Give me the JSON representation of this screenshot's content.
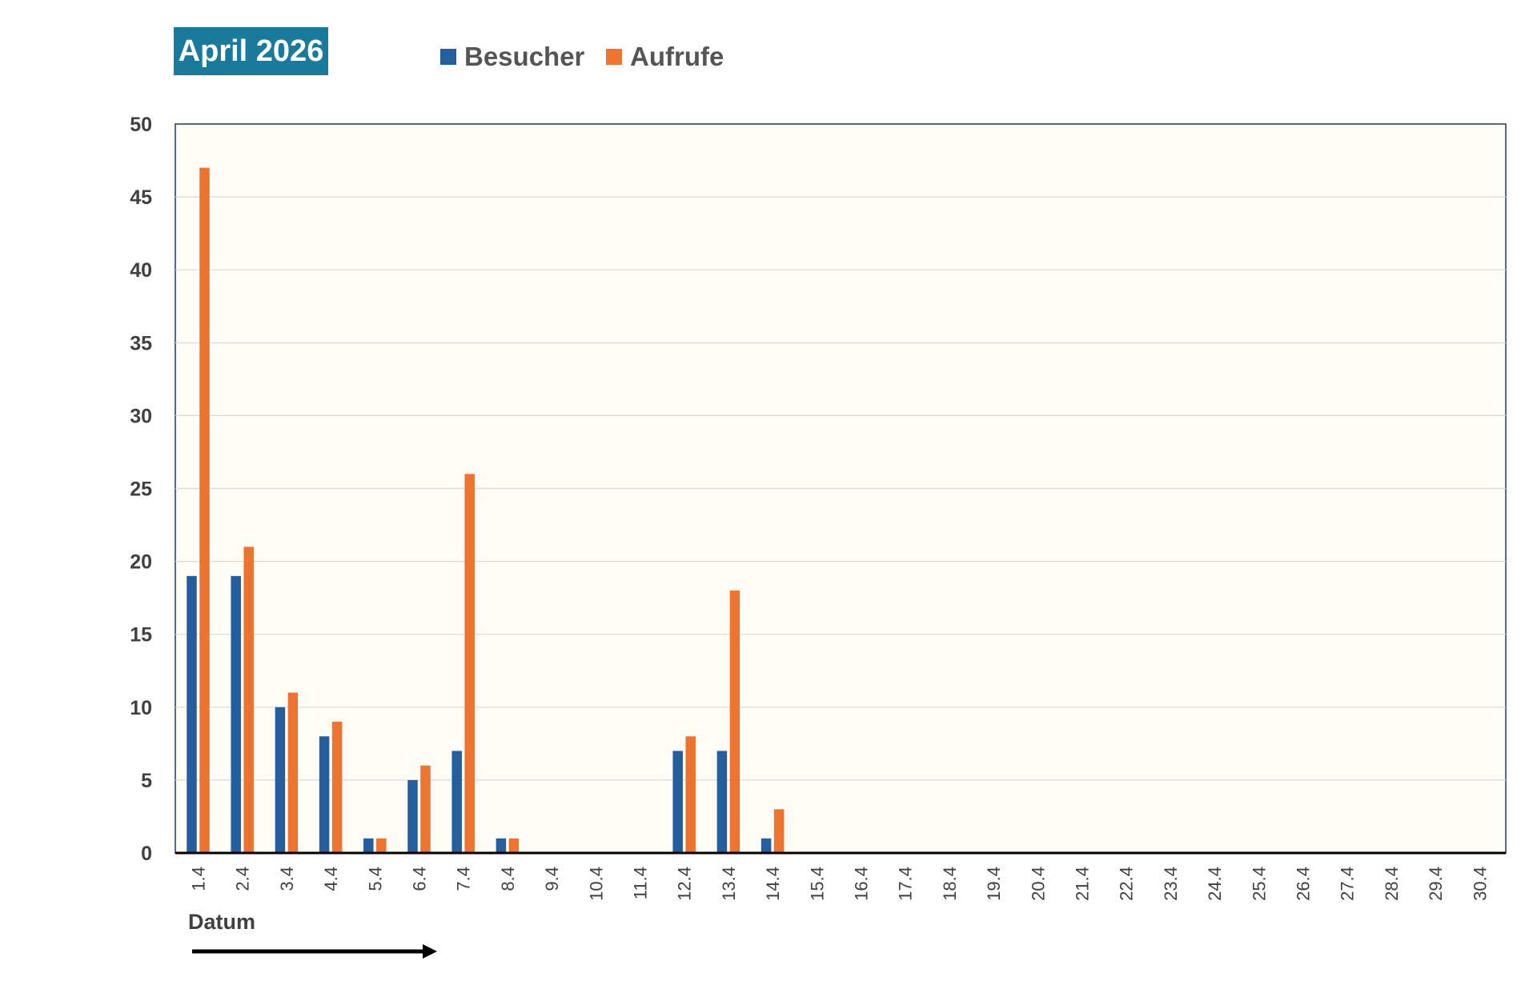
{
  "chart_data": {
    "type": "bar",
    "title": "April 2026",
    "xlabel": "Datum",
    "ylabel": "",
    "ylim": [
      0,
      50
    ],
    "yticks": [
      0,
      5,
      10,
      15,
      20,
      25,
      30,
      35,
      40,
      45,
      50
    ],
    "grid": true,
    "legend_position": "top",
    "categories": [
      "1.4",
      "2.4",
      "3.4",
      "4.4",
      "5.4",
      "6.4",
      "7.4",
      "8.4",
      "9.4",
      "10.4",
      "11.4",
      "12.4",
      "13.4",
      "14.4",
      "15.4",
      "16.4",
      "17.4",
      "18.4",
      "19.4",
      "20.4",
      "21.4",
      "22.4",
      "23.4",
      "24.4",
      "25.4",
      "26.4",
      "27.4",
      "28.4",
      "29.4",
      "30.4"
    ],
    "series": [
      {
        "name": "Besucher",
        "color": "#255e9c",
        "values": [
          19,
          19,
          10,
          8,
          1,
          5,
          7,
          1,
          0,
          0,
          0,
          7,
          7,
          1,
          0,
          0,
          0,
          0,
          0,
          0,
          0,
          0,
          0,
          0,
          0,
          0,
          0,
          0,
          0,
          0
        ]
      },
      {
        "name": "Aufrufe",
        "color": "#ed7331",
        "values": [
          47,
          21,
          11,
          9,
          1,
          6,
          26,
          1,
          0,
          0,
          0,
          8,
          18,
          3,
          0,
          0,
          0,
          0,
          0,
          0,
          0,
          0,
          0,
          0,
          0,
          0,
          0,
          0,
          0,
          0
        ]
      }
    ],
    "colors": {
      "title_background": "#1a7a9b",
      "plot_background": "#fdfdf6",
      "grid": "#d9d9d9",
      "axis_border": "#1f3864"
    }
  }
}
